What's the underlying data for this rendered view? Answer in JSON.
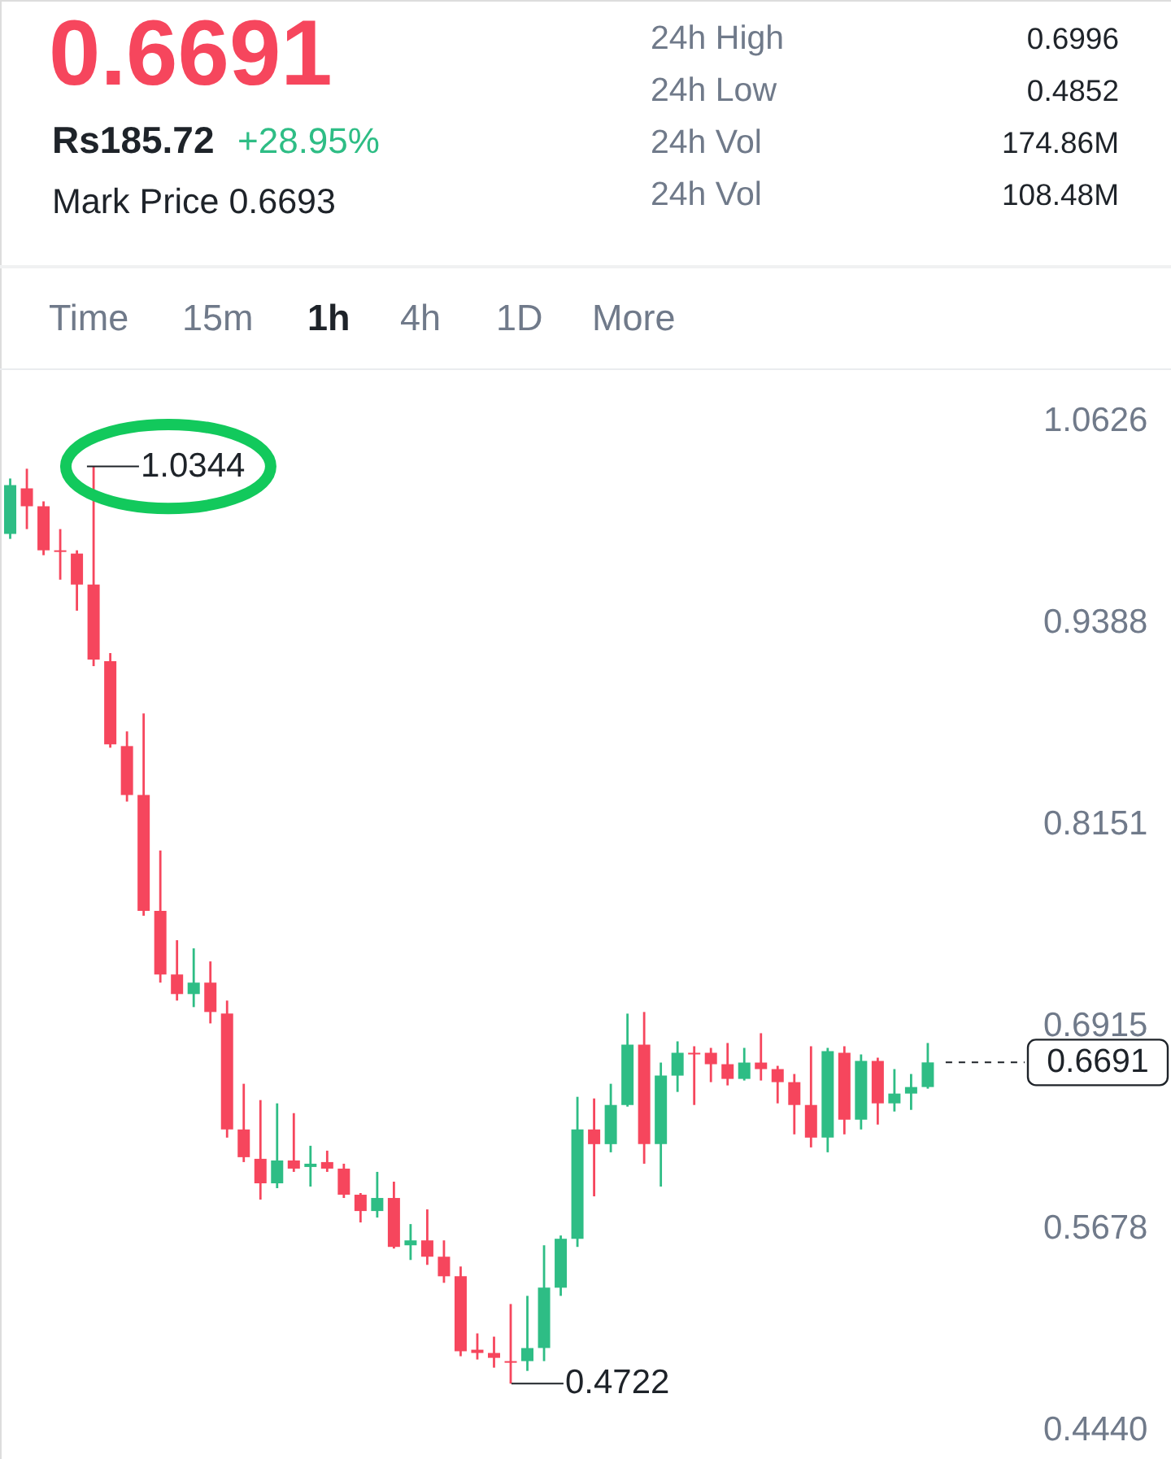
{
  "chart_data": {
    "type": "candlestick",
    "title": "0.6691",
    "annotations": [
      "Rs185.72",
      "+28.95%",
      "Mark Price 0.6693",
      "24h High",
      "0.6996",
      "24h Low",
      "0.4852",
      "24h Vol",
      "174.86M",
      "24h Vol",
      "108.48M",
      "Time",
      "15m",
      "1h",
      "4h",
      "1D",
      "More",
      "1.0344",
      "0.4722"
    ],
    "categories": [
      null,
      null,
      null,
      null,
      null,
      null,
      null,
      null,
      null,
      null,
      null,
      null,
      null,
      null,
      null,
      null,
      null,
      null,
      null,
      null,
      null,
      null,
      null,
      null,
      null,
      null,
      null,
      null,
      null,
      null,
      null,
      null,
      null,
      null,
      null,
      null,
      null,
      null,
      null,
      null,
      null,
      null,
      null,
      null,
      null,
      null,
      null,
      null,
      null,
      null,
      null,
      null,
      null,
      null,
      null,
      null
    ],
    "ohlc": [
      [
        0.993,
        1.027,
        0.99,
        1.023
      ],
      [
        1.021,
        1.033,
        0.996,
        1.01
      ],
      [
        1.01,
        1.013,
        0.98,
        0.983
      ],
      [
        0.983,
        0.996,
        0.965,
        0.982
      ],
      [
        0.981,
        0.983,
        0.946,
        0.962
      ],
      [
        0.962,
        1.0344,
        0.912,
        0.916
      ],
      [
        0.915,
        0.92,
        0.862,
        0.864
      ],
      [
        0.863,
        0.872,
        0.829,
        0.833
      ],
      [
        0.833,
        0.883,
        0.759,
        0.762
      ],
      [
        0.762,
        0.799,
        0.718,
        0.723
      ],
      [
        0.723,
        0.744,
        0.707,
        0.711
      ],
      [
        0.711,
        0.739,
        0.703,
        0.718
      ],
      [
        0.718,
        0.731,
        0.693,
        0.7
      ],
      [
        0.699,
        0.707,
        0.623,
        0.628
      ],
      [
        0.628,
        0.656,
        0.608,
        0.611
      ],
      [
        0.61,
        0.646,
        0.585,
        0.595
      ],
      [
        0.595,
        0.644,
        0.592,
        0.609
      ],
      [
        0.609,
        0.638,
        0.602,
        0.604
      ],
      [
        0.605,
        0.618,
        0.593,
        0.607
      ],
      [
        0.608,
        0.615,
        0.602,
        0.604
      ],
      [
        0.604,
        0.607,
        0.586,
        0.588
      ],
      [
        0.588,
        0.589,
        0.571,
        0.578
      ],
      [
        0.578,
        0.602,
        0.574,
        0.586
      ],
      [
        0.586,
        0.596,
        0.555,
        0.556
      ],
      [
        0.557,
        0.57,
        0.548,
        0.56
      ],
      [
        0.56,
        0.579,
        0.545,
        0.55
      ],
      [
        0.55,
        0.56,
        0.534,
        0.538
      ],
      [
        0.538,
        0.544,
        0.489,
        0.492
      ],
      [
        0.493,
        0.503,
        0.487,
        0.491
      ],
      [
        0.491,
        0.501,
        0.482,
        0.488
      ],
      [
        0.486,
        0.521,
        0.4722,
        0.485
      ],
      [
        0.486,
        0.526,
        0.48,
        0.494
      ],
      [
        0.494,
        0.557,
        0.486,
        0.531
      ],
      [
        0.531,
        0.563,
        0.526,
        0.561
      ],
      [
        0.561,
        0.648,
        0.556,
        0.628
      ],
      [
        0.628,
        0.647,
        0.587,
        0.619
      ],
      [
        0.619,
        0.656,
        0.614,
        0.643
      ],
      [
        0.643,
        0.699,
        0.642,
        0.68
      ],
      [
        0.68,
        0.7,
        0.607,
        0.619
      ],
      [
        0.619,
        0.669,
        0.593,
        0.661
      ],
      [
        0.661,
        0.682,
        0.651,
        0.675
      ],
      [
        0.675,
        0.679,
        0.643,
        0.674
      ],
      [
        0.675,
        0.678,
        0.657,
        0.668
      ],
      [
        0.668,
        0.681,
        0.655,
        0.659
      ],
      [
        0.659,
        0.678,
        0.658,
        0.669
      ],
      [
        0.669,
        0.687,
        0.658,
        0.665
      ],
      [
        0.665,
        0.667,
        0.644,
        0.657
      ],
      [
        0.657,
        0.662,
        0.625,
        0.643
      ],
      [
        0.643,
        0.679,
        0.617,
        0.623
      ],
      [
        0.623,
        0.678,
        0.614,
        0.676
      ],
      [
        0.675,
        0.679,
        0.625,
        0.634
      ],
      [
        0.634,
        0.674,
        0.628,
        0.67
      ],
      [
        0.67,
        0.672,
        0.631,
        0.644
      ],
      [
        0.644,
        0.665,
        0.639,
        0.65
      ],
      [
        0.65,
        0.662,
        0.64,
        0.654
      ],
      [
        0.654,
        0.681,
        0.653,
        0.6691
      ]
    ],
    "colors": [
      "#2ebd85",
      "#f6465d",
      "#f6465d",
      "#f6465d",
      "#f6465d",
      "#f6465d",
      "#f6465d",
      "#f6465d",
      "#f6465d",
      "#f6465d",
      "#f6465d",
      "#2ebd85",
      "#f6465d",
      "#f6465d",
      "#f6465d",
      "#f6465d",
      "#2ebd85",
      "#f6465d",
      "#2ebd85",
      "#f6465d",
      "#f6465d",
      "#f6465d",
      "#2ebd85",
      "#f6465d",
      "#2ebd85",
      "#f6465d",
      "#f6465d",
      "#f6465d",
      "#f6465d",
      "#f6465d",
      "#f6465d",
      "#2ebd85",
      "#2ebd85",
      "#2ebd85",
      "#2ebd85",
      "#f6465d",
      "#2ebd85",
      "#2ebd85",
      "#f6465d",
      "#2ebd85",
      "#2ebd85",
      "#f6465d",
      "#f6465d",
      "#f6465d",
      "#2ebd85",
      "#f6465d",
      "#f6465d",
      "#f6465d",
      "#f6465d",
      "#2ebd85",
      "#f6465d",
      "#2ebd85",
      "#f6465d",
      "#2ebd85",
      "#2ebd85",
      "#2ebd85"
    ],
    "ylim": [
      0.426,
      1.093
    ],
    "yticks": [
      1.0626,
      0.9388,
      0.8151,
      0.6915,
      0.5678,
      {
        "value": 0.444,
        "label": "0.4440"
      }
    ],
    "tick_labels": "y",
    "ref_lines": [
      {
        "axis": "y",
        "value": 0.6691,
        "label": "0.6691",
        "color": "#1e2329",
        "line_style": "dashed"
      }
    ]
  }
}
